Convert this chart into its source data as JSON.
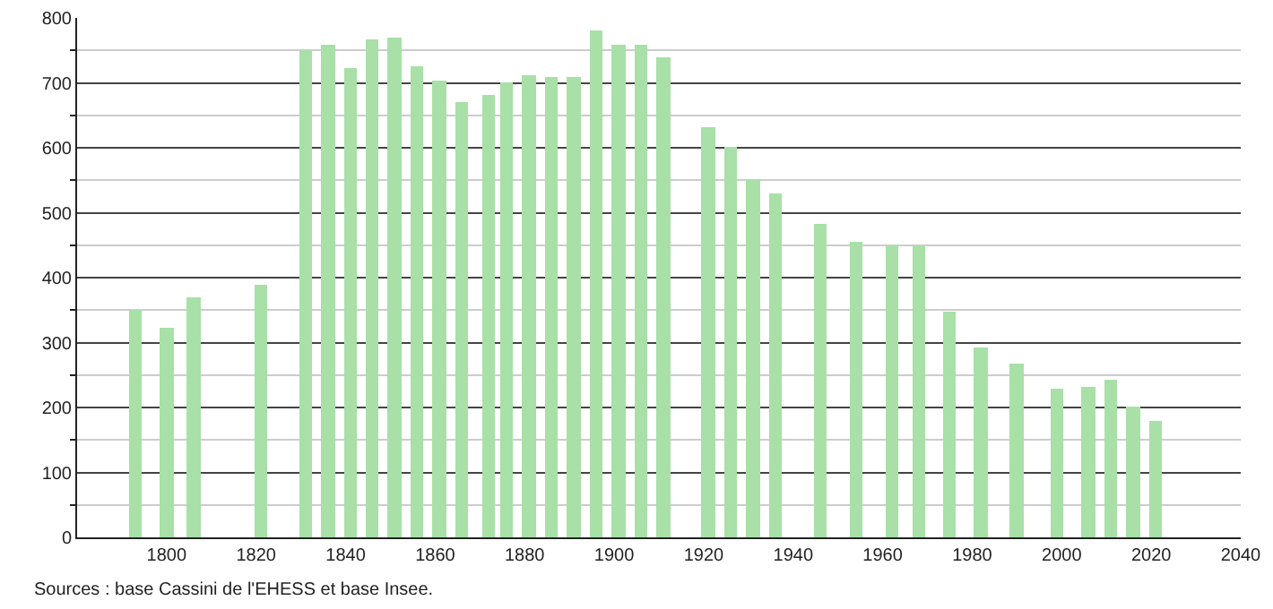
{
  "chart_data": {
    "type": "bar",
    "x": [
      1793,
      1800,
      1806,
      1821,
      1831,
      1836,
      1841,
      1846,
      1851,
      1856,
      1861,
      1866,
      1872,
      1876,
      1881,
      1886,
      1891,
      1896,
      1901,
      1906,
      1911,
      1921,
      1926,
      1931,
      1936,
      1946,
      1954,
      1962,
      1968,
      1975,
      1982,
      1990,
      1999,
      2006,
      2011,
      2016,
      2021
    ],
    "values": [
      350,
      322,
      370,
      388,
      750,
      759,
      722,
      767,
      770,
      725,
      703,
      669,
      681,
      702,
      712,
      708,
      709,
      780,
      759,
      759,
      739,
      631,
      601,
      552,
      530,
      483,
      454,
      449,
      449,
      348,
      292,
      268,
      228,
      232,
      243,
      201,
      178
    ],
    "color": "#a8e0a8",
    "xlim": [
      1780,
      2040
    ],
    "xticks": [
      1800,
      1820,
      1840,
      1860,
      1880,
      1900,
      1920,
      1940,
      1960,
      1980,
      2000,
      2020,
      2040
    ],
    "ylim": [
      0,
      800
    ],
    "yticks": [
      0,
      100,
      200,
      300,
      400,
      500,
      600,
      700,
      800
    ],
    "grid": "y",
    "annotations": [
      "Sources : base Cassini de l'EHESS et base Insee."
    ]
  }
}
